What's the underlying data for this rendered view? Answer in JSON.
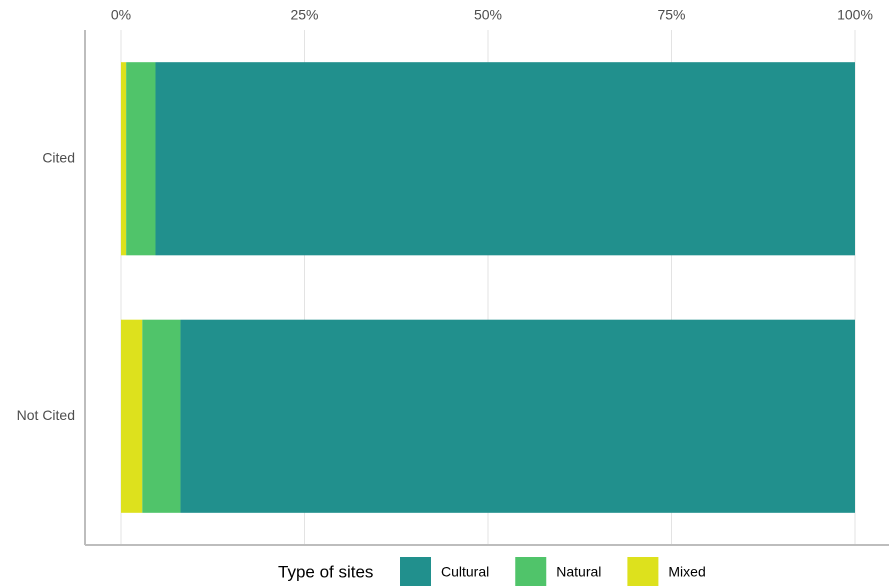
{
  "chart_data": {
    "type": "stacked-bar-horizontal",
    "categories": [
      "Cited",
      "Not Cited"
    ],
    "series": [
      {
        "name": "Cultural",
        "color": "#21908d",
        "values": [
          95.3,
          91.9
        ]
      },
      {
        "name": "Natural",
        "color": "#50c46a",
        "values": [
          4.0,
          5.2
        ]
      },
      {
        "name": "Mixed",
        "color": "#dde11d",
        "values": [
          0.7,
          2.9
        ]
      }
    ],
    "xlim": [
      0,
      100
    ],
    "xticks": [
      {
        "value": 0,
        "label": "0%"
      },
      {
        "value": 25,
        "label": "25%"
      },
      {
        "value": 50,
        "label": "50%"
      },
      {
        "value": 75,
        "label": "75%"
      },
      {
        "value": 100,
        "label": "100%"
      }
    ],
    "grid": true,
    "legend_title": "Type of sites",
    "legend_position": "bottom"
  }
}
